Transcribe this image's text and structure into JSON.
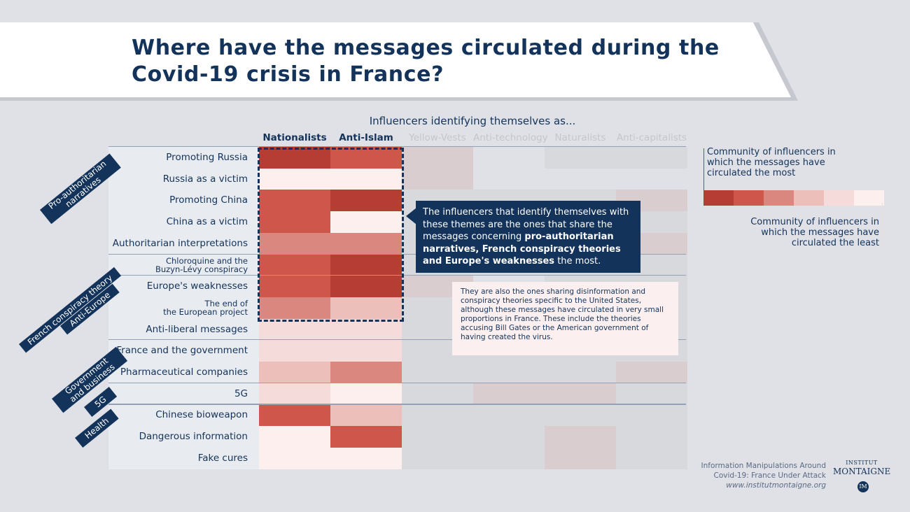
{
  "title": "Where have the messages circulated during the Covid-19 crisis in France?",
  "column_header": "Influencers identifying themselves as...",
  "colors": {
    "navy": "#13335a",
    "level_1": "#b63d33",
    "level_2": "#ce564b",
    "level_3": "#da877f",
    "level_4": "#edbfba",
    "level_5": "#f5dcda",
    "level_6": "#fcefed",
    "grey_1": "#d7d9dd",
    "grey_2": "#d9cdcf",
    "grey_3": "#cfc3c4"
  },
  "chart_data": {
    "type": "heatmap",
    "title": "Where have the messages circulated during the Covid-19 crisis in France?",
    "xlabel": "Influencers identifying themselves as...",
    "columns": [
      "Nationalists",
      "Anti-Islam",
      "Yellow-Vests",
      "Anti-technology",
      "Naturalists",
      "Anti-capitalists"
    ],
    "highlighted_columns": [
      "Nationalists",
      "Anti-Islam"
    ],
    "rows": [
      "Promoting Russia",
      "Russia as a victim",
      "Promoting China",
      "China as a victim",
      "Authoritarian interpretations",
      "Chloroquine and the Buzyn-Lévy conspiracy",
      "Europe's weaknesses",
      "The end of the European project",
      "Anti-liberal messages",
      "France and the government",
      "Pharmaceutical companies",
      "5G",
      "Chinese bioweapon",
      "Dangerous information",
      "Fake cures"
    ],
    "groups": [
      {
        "label": "Pro-authoritarian narratives",
        "rows": [
          "Promoting Russia",
          "Russia as a victim",
          "Promoting China",
          "China as a victim",
          "Authoritarian interpretations"
        ]
      },
      {
        "label": "French conspiracy theory",
        "rows": [
          "Chloroquine and the Buzyn-Lévy conspiracy"
        ]
      },
      {
        "label": "Anti-Europe",
        "rows": [
          "Europe's weaknesses",
          "The end of the European project",
          "Anti-liberal messages"
        ]
      },
      {
        "label": "Government and business",
        "rows": [
          "France and the government",
          "Pharmaceutical companies"
        ]
      },
      {
        "label": "5G",
        "rows": [
          "5G"
        ]
      },
      {
        "label": "Health",
        "rows": [
          "Chinese bioweapon",
          "Dangerous information",
          "Fake cures"
        ]
      }
    ],
    "scale_note": "Levels 1 (most circulated) to 6 (least circulated); 0 = no color",
    "values": [
      [
        1,
        2,
        4,
        0,
        5,
        5
      ],
      [
        6,
        6,
        4,
        0,
        0,
        0
      ],
      [
        2,
        1,
        5,
        5,
        5,
        4
      ],
      [
        2,
        6,
        5,
        5,
        5,
        5
      ],
      [
        3,
        3,
        5,
        5,
        5,
        4
      ],
      [
        2,
        1,
        5,
        5,
        5,
        5
      ],
      [
        2,
        1,
        4,
        0,
        5,
        5
      ],
      [
        3,
        4,
        5,
        5,
        5,
        5
      ],
      [
        5,
        5,
        5,
        5,
        5,
        5
      ],
      [
        5,
        5,
        5,
        5,
        5,
        5
      ],
      [
        4,
        3,
        5,
        5,
        5,
        4
      ],
      [
        5,
        6,
        5,
        4,
        4,
        5
      ],
      [
        2,
        4,
        5,
        5,
        5,
        5
      ],
      [
        6,
        2,
        5,
        5,
        4,
        5
      ],
      [
        6,
        6,
        5,
        5,
        4,
        5
      ]
    ]
  },
  "callout": {
    "text_before": "The influencers that identify themselves with these themes are the ones that share the messages concerning ",
    "text_bold": "pro-authoritarian narratives, French conspiracy theories and Europe's weaknesses",
    "text_after": " the most."
  },
  "note": "They are also the ones sharing disinformation and conspiracy theories specific to the United States, although these messages have circulated in very small proportions in France. These include the theories accusing Bill Gates or the American government of having created the virus.",
  "legend": {
    "most": "Community of influencers in which the messages have circulated the most",
    "least": "Community of influencers in which the messages have circulated the least"
  },
  "source": {
    "line1": "Information Manipulations Around",
    "line2": "Covid-19: France Under Attack",
    "url": "www.institutmontaigne.org"
  },
  "logo": {
    "line1": "INSTITUT",
    "line2": "MONTAIGNE",
    "mark": "IM"
  }
}
